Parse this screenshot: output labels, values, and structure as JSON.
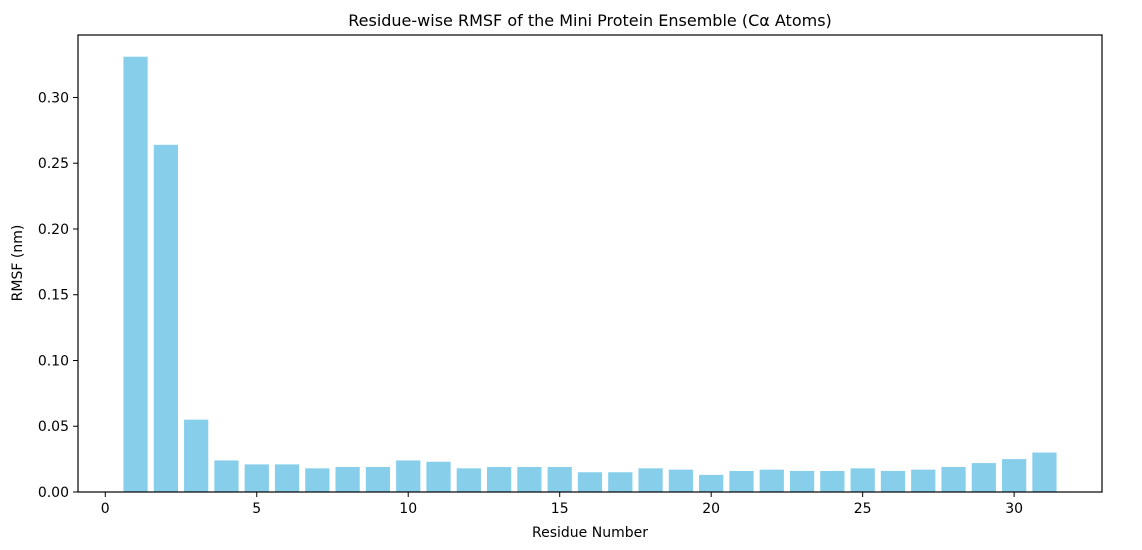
{
  "chart_data": {
    "type": "bar",
    "title": "Residue-wise RMSF of the Mini Protein Ensemble (Cα Atoms)",
    "xlabel": "Residue Number",
    "ylabel": "RMSF (nm)",
    "x": [
      1,
      2,
      3,
      4,
      5,
      6,
      7,
      8,
      9,
      10,
      11,
      12,
      13,
      14,
      15,
      16,
      17,
      18,
      19,
      20,
      21,
      22,
      23,
      24,
      25,
      26,
      27,
      28,
      29,
      30,
      31
    ],
    "values": [
      0.331,
      0.264,
      0.055,
      0.024,
      0.021,
      0.021,
      0.018,
      0.019,
      0.019,
      0.024,
      0.023,
      0.018,
      0.019,
      0.019,
      0.019,
      0.015,
      0.015,
      0.018,
      0.017,
      0.013,
      0.016,
      0.017,
      0.016,
      0.016,
      0.018,
      0.016,
      0.017,
      0.019,
      0.022,
      0.025,
      0.03
    ],
    "xlim": [
      -0.9,
      32.9
    ],
    "ylim": [
      0,
      0.3475
    ],
    "xticks": [
      0,
      5,
      10,
      15,
      20,
      25,
      30
    ],
    "yticks": [
      0.0,
      0.05,
      0.1,
      0.15,
      0.2,
      0.25,
      0.3
    ],
    "bar_color": "#87CEEB",
    "grid": false,
    "legend": false
  }
}
